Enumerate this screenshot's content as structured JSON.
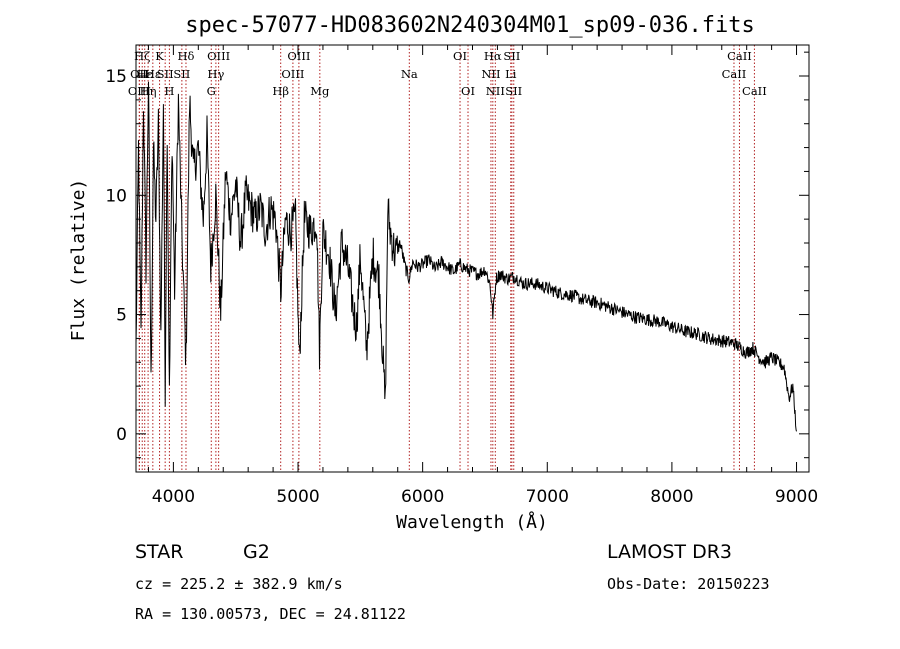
{
  "chart_data": {
    "type": "line",
    "title": "spec-57077-HD083602N240304M01_sp09-036.fits",
    "xlabel": "Wavelength (Å)",
    "ylabel": "Flux (relative)",
    "xlim": [
      3700,
      9100
    ],
    "ylim": [
      -1.6,
      16.3
    ],
    "x_ticks": [
      4000,
      5000,
      6000,
      7000,
      8000,
      9000
    ],
    "y_ticks": [
      0,
      5,
      10,
      15
    ],
    "grid": false,
    "series": [
      {
        "name": "flux",
        "x": [
          3700,
          3720,
          3740,
          3760,
          3780,
          3800,
          3820,
          3840,
          3860,
          3880,
          3900,
          3920,
          3934,
          3950,
          3968,
          3990,
          4010,
          4040,
          4070,
          4101,
          4130,
          4160,
          4200,
          4240,
          4270,
          4300,
          4340,
          4380,
          4420,
          4460,
          4500,
          4540,
          4580,
          4620,
          4660,
          4700,
          4740,
          4780,
          4820,
          4861,
          4900,
          4940,
          4980,
          5010,
          5050,
          5100,
          5150,
          5172,
          5200,
          5250,
          5300,
          5350,
          5400,
          5450,
          5470,
          5500,
          5550,
          5600,
          5650,
          5700,
          5720,
          5740,
          5780,
          5820,
          5860,
          5890,
          5920,
          5960,
          6000,
          6050,
          6100,
          6150,
          6200,
          6250,
          6300,
          6350,
          6400,
          6450,
          6500,
          6540,
          6563,
          6590,
          6620,
          6680,
          6740,
          6800,
          6900,
          7000,
          7100,
          7200,
          7300,
          7400,
          7500,
          7600,
          7700,
          7800,
          7900,
          8000,
          8100,
          8200,
          8300,
          8400,
          8500,
          8550,
          8600,
          8650,
          8700,
          8750,
          8800,
          8850,
          8900,
          8940,
          8970,
          9000
        ],
        "values": [
          3.5,
          12,
          4,
          14,
          7,
          15,
          2,
          12,
          9,
          13,
          4,
          14,
          2,
          13,
          1.5,
          12.5,
          6,
          14,
          8,
          3,
          14,
          11,
          12,
          9,
          12.5,
          7,
          10,
          5,
          11,
          9,
          10.5,
          8,
          10,
          9.5,
          9,
          9.5,
          8.5,
          9.5,
          9,
          6,
          9,
          8.5,
          9,
          3,
          9,
          8.5,
          9,
          3.5,
          8.5,
          7.5,
          5,
          8,
          7,
          5,
          4.5,
          7.5,
          3.5,
          7.5,
          6.5,
          1.2,
          9.5,
          8.5,
          7.5,
          8,
          7,
          6.5,
          7.2,
          7,
          7.1,
          7.3,
          6.9,
          7.2,
          7.0,
          6.8,
          7.1,
          6.9,
          6.8,
          6.7,
          6.9,
          6.3,
          5.0,
          6.5,
          6.7,
          6.5,
          6.6,
          6.3,
          6.3,
          6.1,
          5.9,
          5.8,
          5.6,
          5.5,
          5.3,
          5.1,
          4.9,
          4.8,
          4.7,
          4.5,
          4.3,
          4.2,
          4.0,
          3.9,
          3.8,
          3.6,
          3.4,
          3.6,
          3.2,
          3.0,
          3.2,
          3.0,
          2.8,
          1.5,
          2.0,
          0.1
        ]
      }
    ],
    "lines": [
      {
        "wl": 3727,
        "label": "OII",
        "tier": 1
      },
      {
        "wl": 3727,
        "label": "OIII",
        "tier": 2
      },
      {
        "wl": 3750,
        "label": "Hζ",
        "tier": 0
      },
      {
        "wl": 3770,
        "label": "Hε",
        "tier": 1
      },
      {
        "wl": 3797,
        "label": "Hη",
        "tier": 2
      },
      {
        "wl": 3835,
        "label": "Hε",
        "tier": 1
      },
      {
        "wl": 3889,
        "label": "K",
        "tier": 0
      },
      {
        "wl": 3934,
        "label": "SII",
        "tier": 1
      },
      {
        "wl": 3968,
        "label": "H",
        "tier": 2
      },
      {
        "wl": 4101,
        "label": "Hδ",
        "tier": 0
      },
      {
        "wl": 4068,
        "label": "SII",
        "tier": 1
      },
      {
        "wl": 4304,
        "label": "G",
        "tier": 2
      },
      {
        "wl": 4341,
        "label": "Hγ",
        "tier": 1
      },
      {
        "wl": 4363,
        "label": "OIII",
        "tier": 0
      },
      {
        "wl": 4861,
        "label": "Hβ",
        "tier": 2
      },
      {
        "wl": 4959,
        "label": "OIII",
        "tier": 1
      },
      {
        "wl": 5007,
        "label": "OIII",
        "tier": 0
      },
      {
        "wl": 5175,
        "label": "Mg",
        "tier": 2
      },
      {
        "wl": 5893,
        "label": "Na",
        "tier": 1
      },
      {
        "wl": 6300,
        "label": "OI",
        "tier": 0
      },
      {
        "wl": 6364,
        "label": "OI",
        "tier": 2
      },
      {
        "wl": 6548,
        "label": "NII",
        "tier": 1
      },
      {
        "wl": 6563,
        "label": "Hα",
        "tier": 0
      },
      {
        "wl": 6583,
        "label": "NII",
        "tier": 2
      },
      {
        "wl": 6707,
        "label": "Li",
        "tier": 1
      },
      {
        "wl": 6716,
        "label": "SII",
        "tier": 0
      },
      {
        "wl": 6731,
        "label": "SII",
        "tier": 2
      },
      {
        "wl": 8498,
        "label": "CaII",
        "tier": 1
      },
      {
        "wl": 8542,
        "label": "CaII",
        "tier": 0
      },
      {
        "wl": 8662,
        "label": "CaII",
        "tier": 2
      }
    ]
  },
  "info": {
    "object_type": "STAR",
    "subclass": "G2",
    "survey": "LAMOST DR3",
    "cz": "cz = 225.2 ± 382.9 km/s",
    "obs_date": "Obs-Date: 20150223",
    "coords": "RA = 130.00573, DEC =  24.81122"
  }
}
